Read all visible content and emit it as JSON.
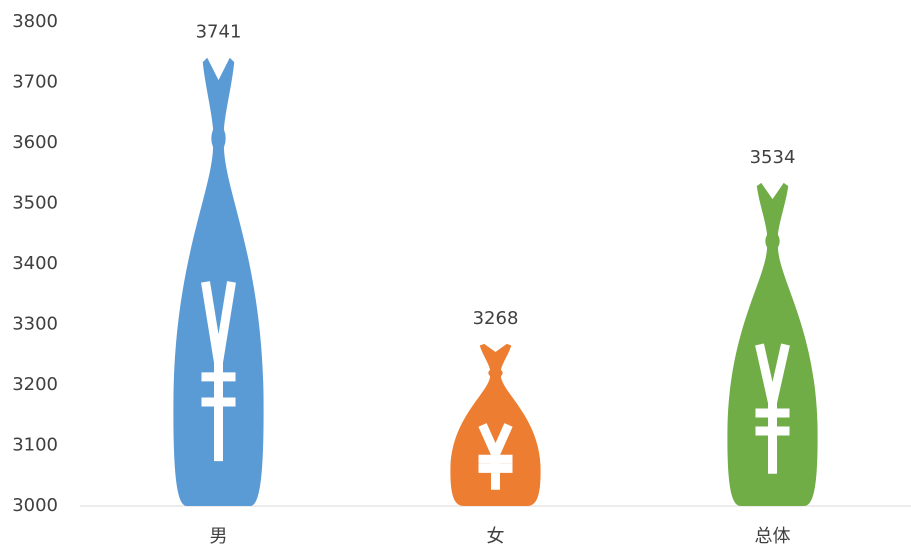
{
  "chart_data": {
    "type": "bar",
    "categories": [
      "男",
      "女",
      "总体"
    ],
    "values": [
      3741,
      3268,
      3534
    ],
    "colors": [
      "#5b9bd5",
      "#ed7d31",
      "#70ad47"
    ],
    "ylim": [
      3000,
      3800
    ],
    "yticks": [
      3000,
      3100,
      3200,
      3300,
      3400,
      3500,
      3600,
      3700,
      3800
    ],
    "grid": false
  }
}
